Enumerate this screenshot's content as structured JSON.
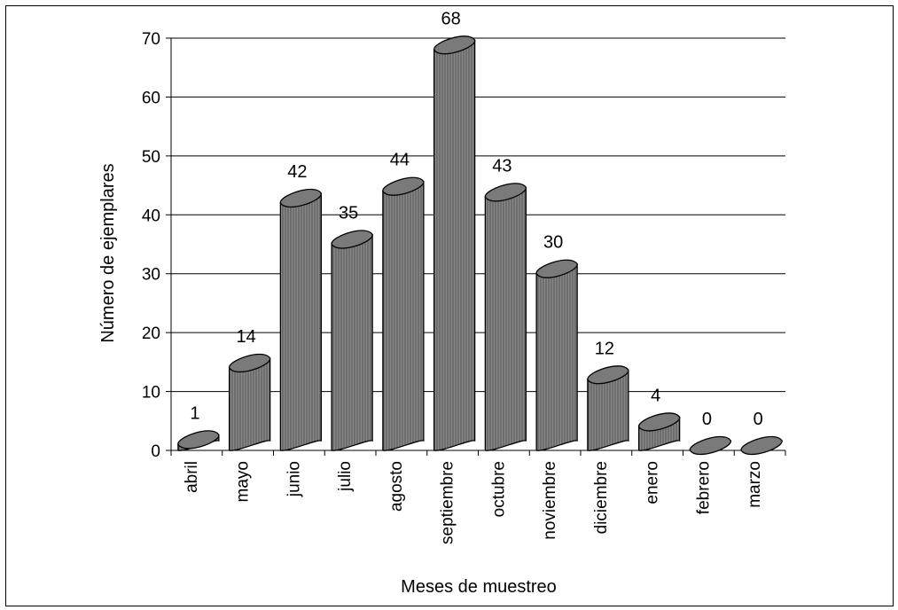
{
  "chart_data": {
    "type": "bar",
    "title": "",
    "xlabel": "Meses de muestreo",
    "ylabel": "Número de ejemplares",
    "categories": [
      "abril",
      "mayo",
      "junio",
      "julio",
      "agosto",
      "septiembre",
      "octubre",
      "noviembre",
      "diciembre",
      "enero",
      "febrero",
      "marzo"
    ],
    "values": [
      1,
      14,
      42,
      35,
      44,
      68,
      43,
      30,
      12,
      4,
      0,
      0
    ],
    "data_labels": [
      "1",
      "14",
      "42",
      "35",
      "44",
      "68",
      "43",
      "30",
      "12",
      "4",
      "0",
      "0"
    ],
    "ylim": [
      0,
      70
    ],
    "yticks": [
      0,
      10,
      20,
      30,
      40,
      50,
      60,
      70
    ],
    "grid": true,
    "legend": "none",
    "bar_style": "3d-cylinder",
    "colors": {
      "bar_fill": "#888888",
      "bar_stripe": "#555555",
      "bar_top": "#7a7a7a",
      "gridline": "#000000"
    }
  }
}
